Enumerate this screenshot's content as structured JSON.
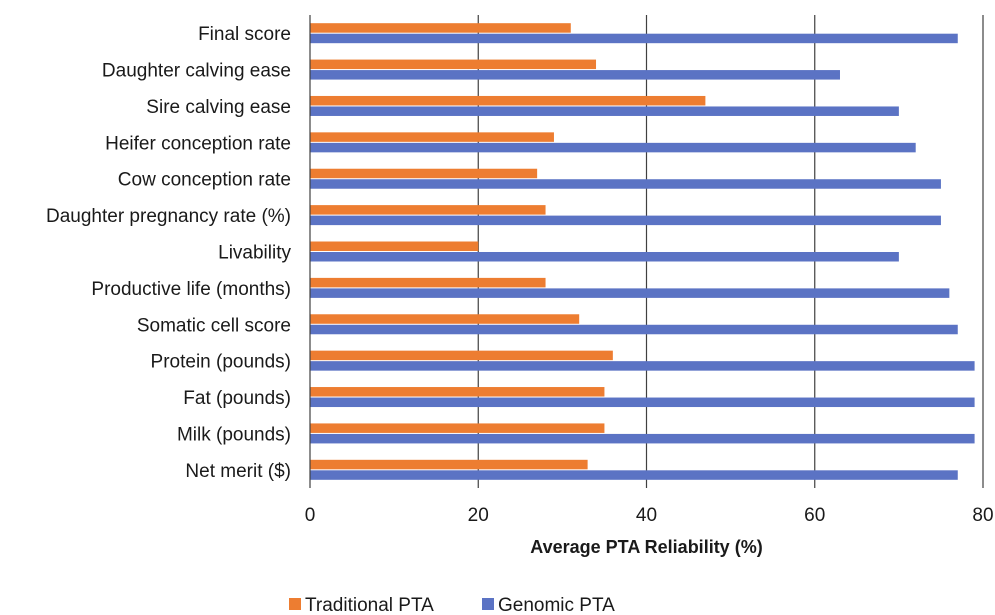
{
  "chart_data": {
    "type": "bar",
    "orientation": "horizontal",
    "categories": [
      "Final score",
      "Daughter calving ease",
      "Sire calving ease",
      "Heifer conception rate",
      "Cow conception rate",
      "Daughter pregnancy rate (%)",
      "Livability",
      "Productive life (months)",
      "Somatic cell score",
      "Protein (pounds)",
      "Fat (pounds)",
      "Milk (pounds)",
      "Net merit ($)"
    ],
    "series": [
      {
        "name": "Traditional PTA",
        "color": "#ED7D31",
        "values": [
          31,
          34,
          47,
          29,
          27,
          28,
          20,
          28,
          32,
          36,
          35,
          35,
          33
        ]
      },
      {
        "name": "Genomic PTA",
        "color": "#5B73C4",
        "values": [
          77,
          63,
          70,
          72,
          75,
          75,
          70,
          76,
          77,
          79,
          79,
          79,
          77
        ]
      }
    ],
    "xlabel": "Average PTA Reliability (%)",
    "xlim": [
      0,
      80
    ],
    "xticks": [
      "0",
      "20",
      "40",
      "60",
      "80"
    ],
    "grid": true,
    "legend_position": "bottom"
  }
}
